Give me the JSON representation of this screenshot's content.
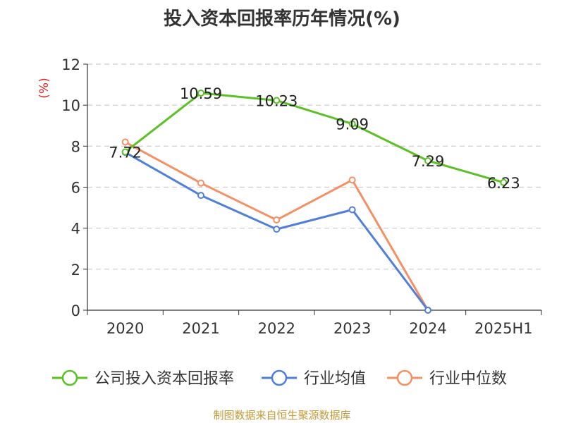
{
  "chart_data": {
    "type": "line",
    "title": "投入资本回报率历年情况(%)",
    "ylabel": "(%)",
    "xlabel": "",
    "categories": [
      "2020",
      "2021",
      "2022",
      "2023",
      "2024",
      "2025H1"
    ],
    "ylim": [
      0,
      12
    ],
    "yticks": [
      0,
      2,
      4,
      6,
      8,
      10,
      12
    ],
    "grid": true,
    "legend_position": "bottom",
    "series": [
      {
        "name": "公司投入资本回报率",
        "color": "#5cc026",
        "values": [
          7.72,
          10.59,
          10.23,
          9.09,
          7.29,
          6.23
        ],
        "data_labels": [
          "7.72",
          "10.59",
          "10.23",
          "9.09",
          "7.29",
          "6.23"
        ]
      },
      {
        "name": "行业均值",
        "color": "#4f7fd9",
        "values": [
          7.7,
          5.6,
          3.95,
          4.9,
          0,
          null
        ]
      },
      {
        "name": "行业中位数",
        "color": "#f49064",
        "values": [
          8.2,
          6.2,
          4.4,
          6.35,
          0,
          null
        ]
      }
    ]
  },
  "footer": {
    "source": "制图数据来自恒生聚源数据库"
  },
  "colors": {
    "axis": "#333333",
    "grid": "#cccccc",
    "ylabel": "#e02020"
  }
}
